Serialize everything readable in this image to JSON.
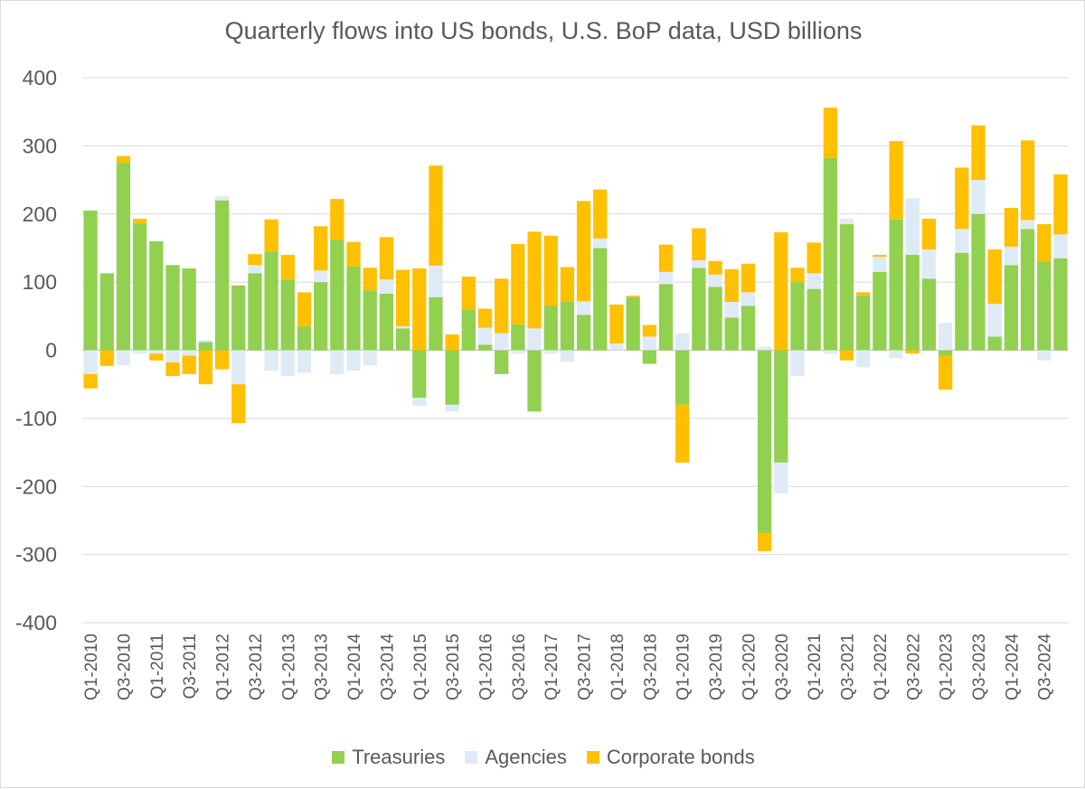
{
  "chart_data": {
    "type": "bar",
    "stacked": true,
    "title": "Quarterly flows into US bonds, U.S. BoP data, USD billions",
    "xlabel": "",
    "ylabel": "",
    "ylim": [
      -400,
      400
    ],
    "yticks": [
      400,
      300,
      200,
      100,
      0,
      -100,
      -200,
      -300,
      -400
    ],
    "legend_position": "bottom",
    "categories": [
      "Q1-2010",
      "Q2-2010",
      "Q3-2010",
      "Q4-2010",
      "Q1-2011",
      "Q2-2011",
      "Q3-2011",
      "Q4-2011",
      "Q1-2012",
      "Q2-2012",
      "Q3-2012",
      "Q4-2012",
      "Q1-2013",
      "Q2-2013",
      "Q3-2013",
      "Q4-2013",
      "Q1-2014",
      "Q2-2014",
      "Q3-2014",
      "Q4-2014",
      "Q1-2015",
      "Q2-2015",
      "Q3-2015",
      "Q4-2015",
      "Q1-2016",
      "Q2-2016",
      "Q3-2016",
      "Q4-2016",
      "Q1-2017",
      "Q2-2017",
      "Q3-2017",
      "Q4-2017",
      "Q1-2018",
      "Q2-2018",
      "Q3-2018",
      "Q4-2018",
      "Q1-2019",
      "Q2-2019",
      "Q3-2019",
      "Q4-2019",
      "Q1-2020",
      "Q2-2020",
      "Q3-2020",
      "Q4-2020",
      "Q1-2021",
      "Q2-2021",
      "Q3-2021",
      "Q4-2021",
      "Q1-2022",
      "Q2-2022",
      "Q3-2022",
      "Q4-2022",
      "Q1-2023",
      "Q2-2023",
      "Q3-2023",
      "Q4-2023",
      "Q1-2024",
      "Q2-2024",
      "Q3-2024",
      "Q4-2024"
    ],
    "tick_labels": [
      "Q1-2010",
      "Q3-2010",
      "Q1-2011",
      "Q3-2011",
      "Q1-2012",
      "Q3-2012",
      "Q1-2013",
      "Q3-2013",
      "Q1-2014",
      "Q3-2014",
      "Q1-2015",
      "Q3-2015",
      "Q1-2016",
      "Q3-2016",
      "Q1-2017",
      "Q3-2017",
      "Q1-2018",
      "Q3-2018",
      "Q1-2019",
      "Q3-2019",
      "Q1-2020",
      "Q3-2020",
      "Q1-2021",
      "Q3-2021",
      "Q1-2022",
      "Q3-2022",
      "Q1-2023",
      "Q3-2023",
      "Q1-2024",
      "Q3-2024"
    ],
    "series": [
      {
        "name": "Treasuries",
        "color": "#92d050",
        "values": [
          205,
          113,
          275,
          186,
          160,
          125,
          120,
          12,
          220,
          95,
          113,
          145,
          103,
          35,
          100,
          162,
          123,
          88,
          83,
          32,
          -70,
          78,
          -80,
          60,
          8,
          -35,
          38,
          -90,
          65,
          72,
          52,
          150,
          0,
          78,
          -20,
          97,
          -80,
          121,
          93,
          48,
          65,
          -268,
          -165,
          100,
          90,
          282,
          185,
          80,
          115,
          192,
          140,
          105,
          -8,
          143,
          200,
          20,
          125,
          178,
          130,
          135
        ]
      },
      {
        "name": "Agencies",
        "color": "#deebf7",
        "values": [
          -35,
          0,
          -22,
          -5,
          -5,
          -18,
          -8,
          3,
          6,
          -50,
          12,
          -30,
          -38,
          -33,
          17,
          -35,
          -30,
          -22,
          21,
          3,
          -12,
          46,
          -10,
          0,
          25,
          25,
          -5,
          32,
          -5,
          -17,
          20,
          14,
          10,
          0,
          20,
          18,
          25,
          11,
          18,
          23,
          20,
          5,
          -45,
          -38,
          23,
          -5,
          8,
          -25,
          22,
          -12,
          83,
          43,
          40,
          35,
          50,
          48,
          27,
          13,
          -15,
          35
        ]
      },
      {
        "name": "Corporate bonds",
        "color": "#ffc000",
        "values": [
          -21,
          -23,
          10,
          7,
          -10,
          -20,
          -27,
          -50,
          -28,
          -57,
          16,
          47,
          37,
          50,
          65,
          60,
          36,
          33,
          62,
          83,
          120,
          147,
          23,
          48,
          28,
          80,
          118,
          142,
          103,
          50,
          147,
          72,
          57,
          2,
          17,
          40,
          -85,
          47,
          20,
          48,
          42,
          -27,
          173,
          21,
          45,
          74,
          -15,
          5,
          3,
          115,
          -5,
          45,
          -50,
          90,
          80,
          80,
          57,
          117,
          55,
          88
        ]
      }
    ]
  }
}
